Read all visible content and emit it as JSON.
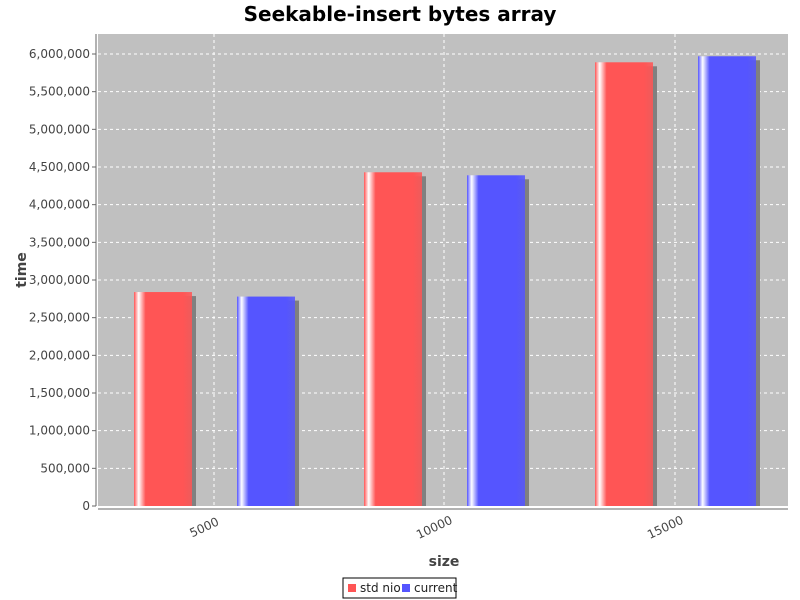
{
  "chart_data": {
    "type": "bar",
    "title": "Seekable-insert bytes array",
    "xlabel": "size",
    "ylabel": "time",
    "categories": [
      "5000",
      "10000",
      "15000"
    ],
    "series": [
      {
        "name": "std nio",
        "values": [
          2840000,
          4430000,
          5890000
        ],
        "color": "#ff5555"
      },
      {
        "name": "current",
        "values": [
          2780000,
          4390000,
          5970000
        ],
        "color": "#5555ff"
      }
    ],
    "ylim": [
      0,
      6250000
    ],
    "yticks": [
      0,
      500000,
      1000000,
      1500000,
      2000000,
      2500000,
      3000000,
      3500000,
      4000000,
      4500000,
      5000000,
      5500000,
      6000000
    ],
    "ytick_labels": [
      "0",
      "500,000",
      "1,000,000",
      "1,500,000",
      "2,000,000",
      "2,500,000",
      "3,000,000",
      "3,500,000",
      "4,000,000",
      "4,500,000",
      "5,000,000",
      "5,500,000",
      "6,000,000"
    ],
    "grid": true,
    "legend_position": "bottom-center",
    "plot_background": "#c0c0c0"
  }
}
